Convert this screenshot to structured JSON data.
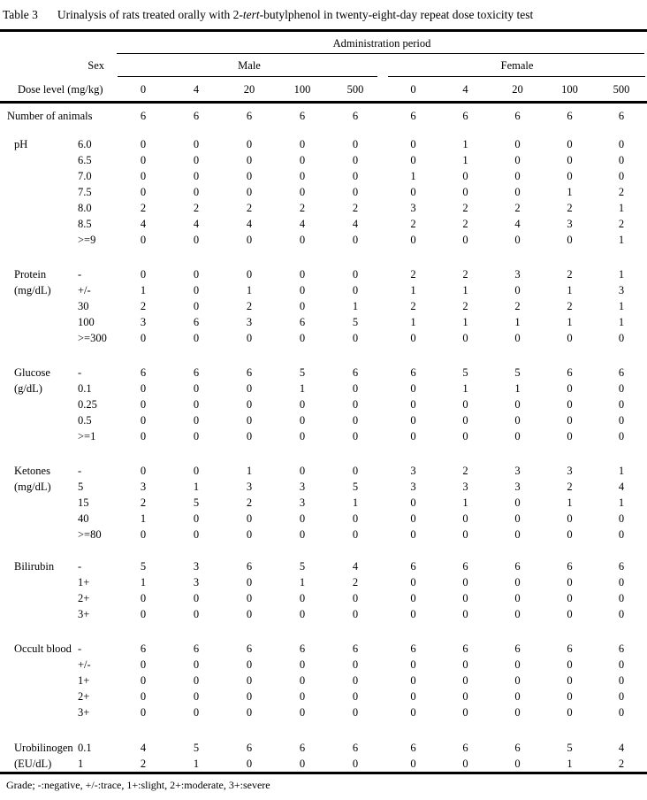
{
  "title": {
    "label": "Table 3",
    "text_prefix": "Urinalysis of rats treated orally with 2-",
    "text_italic": "tert",
    "text_suffix": "-butylphenol in twenty-eight-day repeat dose toxicity test"
  },
  "header": {
    "admin_period": "Administration period",
    "sex_label": "Sex",
    "male": "Male",
    "female": "Female",
    "dose_label": "Dose level (mg/kg)",
    "doses": [
      "0",
      "4",
      "20",
      "100",
      "500",
      "0",
      "4",
      "20",
      "100",
      "500"
    ]
  },
  "number_of_animals": {
    "label": "Number of animals",
    "values": [
      6,
      6,
      6,
      6,
      6,
      6,
      6,
      6,
      6,
      6
    ]
  },
  "sections": [
    {
      "name": "pH",
      "unit": "",
      "rows": [
        {
          "grade": "6.0",
          "values": [
            0,
            0,
            0,
            0,
            0,
            0,
            1,
            0,
            0,
            0
          ]
        },
        {
          "grade": "6.5",
          "values": [
            0,
            0,
            0,
            0,
            0,
            0,
            1,
            0,
            0,
            0
          ]
        },
        {
          "grade": "7.0",
          "values": [
            0,
            0,
            0,
            0,
            0,
            1,
            0,
            0,
            0,
            0
          ]
        },
        {
          "grade": "7.5",
          "values": [
            0,
            0,
            0,
            0,
            0,
            0,
            0,
            0,
            1,
            2
          ]
        },
        {
          "grade": "8.0",
          "values": [
            2,
            2,
            2,
            2,
            2,
            3,
            2,
            2,
            2,
            1
          ]
        },
        {
          "grade": "8.5",
          "values": [
            4,
            4,
            4,
            4,
            4,
            2,
            2,
            4,
            3,
            2
          ]
        },
        {
          "grade": ">=9",
          "values": [
            0,
            0,
            0,
            0,
            0,
            0,
            0,
            0,
            0,
            1
          ]
        }
      ]
    },
    {
      "name": "Protein",
      "unit": "(mg/dL)",
      "rows": [
        {
          "grade": "-",
          "values": [
            0,
            0,
            0,
            0,
            0,
            2,
            2,
            3,
            2,
            1
          ]
        },
        {
          "grade": "+/-",
          "values": [
            1,
            0,
            1,
            0,
            0,
            1,
            1,
            0,
            1,
            3
          ]
        },
        {
          "grade": "30",
          "values": [
            2,
            0,
            2,
            0,
            1,
            2,
            2,
            2,
            2,
            1
          ]
        },
        {
          "grade": "100",
          "values": [
            3,
            6,
            3,
            6,
            5,
            1,
            1,
            1,
            1,
            1
          ]
        },
        {
          "grade": ">=300",
          "values": [
            0,
            0,
            0,
            0,
            0,
            0,
            0,
            0,
            0,
            0
          ]
        }
      ]
    },
    {
      "name": "Glucose",
      "unit": "(g/dL)",
      "rows": [
        {
          "grade": "-",
          "values": [
            6,
            6,
            6,
            5,
            6,
            6,
            5,
            5,
            6,
            6
          ]
        },
        {
          "grade": "0.1",
          "values": [
            0,
            0,
            0,
            1,
            0,
            0,
            1,
            1,
            0,
            0
          ]
        },
        {
          "grade": "0.25",
          "values": [
            0,
            0,
            0,
            0,
            0,
            0,
            0,
            0,
            0,
            0
          ]
        },
        {
          "grade": "0.5",
          "values": [
            0,
            0,
            0,
            0,
            0,
            0,
            0,
            0,
            0,
            0
          ]
        },
        {
          "grade": ">=1",
          "values": [
            0,
            0,
            0,
            0,
            0,
            0,
            0,
            0,
            0,
            0
          ]
        }
      ]
    },
    {
      "name": "Ketones",
      "unit": "(mg/dL)",
      "rows": [
        {
          "grade": "-",
          "values": [
            0,
            0,
            1,
            0,
            0,
            3,
            2,
            3,
            3,
            1
          ]
        },
        {
          "grade": "5",
          "values": [
            3,
            1,
            3,
            3,
            5,
            3,
            3,
            3,
            2,
            4
          ]
        },
        {
          "grade": "15",
          "values": [
            2,
            5,
            2,
            3,
            1,
            0,
            1,
            0,
            1,
            1
          ]
        },
        {
          "grade": "40",
          "values": [
            1,
            0,
            0,
            0,
            0,
            0,
            0,
            0,
            0,
            0
          ]
        },
        {
          "grade": ">=80",
          "values": [
            0,
            0,
            0,
            0,
            0,
            0,
            0,
            0,
            0,
            0
          ]
        }
      ]
    },
    {
      "name": "Bilirubin",
      "unit": "",
      "rows": [
        {
          "grade": "-",
          "values": [
            5,
            3,
            6,
            5,
            4,
            6,
            6,
            6,
            6,
            6
          ]
        },
        {
          "grade": "1+",
          "values": [
            1,
            3,
            0,
            1,
            2,
            0,
            0,
            0,
            0,
            0
          ]
        },
        {
          "grade": "2+",
          "values": [
            0,
            0,
            0,
            0,
            0,
            0,
            0,
            0,
            0,
            0
          ]
        },
        {
          "grade": "3+",
          "values": [
            0,
            0,
            0,
            0,
            0,
            0,
            0,
            0,
            0,
            0
          ]
        }
      ]
    },
    {
      "name": "Occult blood",
      "unit": "",
      "rows": [
        {
          "grade": "-",
          "values": [
            6,
            6,
            6,
            6,
            6,
            6,
            6,
            6,
            6,
            6
          ]
        },
        {
          "grade": "+/-",
          "values": [
            0,
            0,
            0,
            0,
            0,
            0,
            0,
            0,
            0,
            0
          ]
        },
        {
          "grade": "1+",
          "values": [
            0,
            0,
            0,
            0,
            0,
            0,
            0,
            0,
            0,
            0
          ]
        },
        {
          "grade": "2+",
          "values": [
            0,
            0,
            0,
            0,
            0,
            0,
            0,
            0,
            0,
            0
          ]
        },
        {
          "grade": "3+",
          "values": [
            0,
            0,
            0,
            0,
            0,
            0,
            0,
            0,
            0,
            0
          ]
        }
      ]
    },
    {
      "name": "Urobilinogen",
      "unit": "(EU/dL)",
      "rows": [
        {
          "grade": "0.1",
          "values": [
            4,
            5,
            6,
            6,
            6,
            6,
            6,
            6,
            5,
            4
          ]
        },
        {
          "grade": "1",
          "values": [
            2,
            1,
            0,
            0,
            0,
            0,
            0,
            0,
            1,
            2
          ]
        }
      ]
    }
  ],
  "footnote": "Grade; -:negative, +/-:trace, 1+:slight, 2+:moderate, 3+:severe"
}
